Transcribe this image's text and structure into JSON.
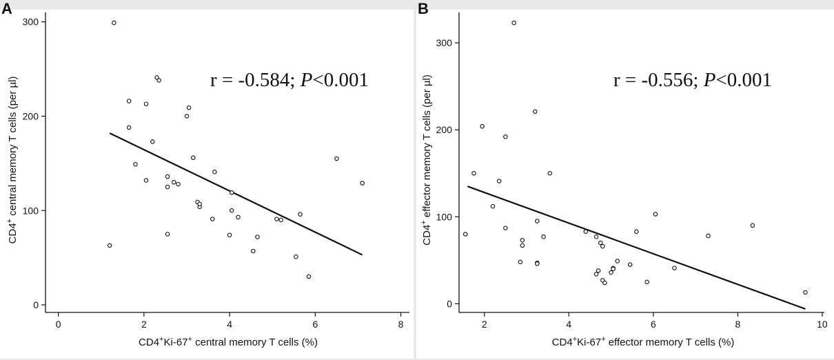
{
  "chart_data": [
    {
      "type": "scatter",
      "panel": "A",
      "xlabel": {
        "pre": "CD4",
        "sup1": "+",
        "mid": "Ki-67",
        "sup2": "+",
        "post": " central memory T cells (%)"
      },
      "ylabel": {
        "pre": "CD4",
        "sup": "+",
        "post": " central memory T cells (per µl)"
      },
      "annotation": {
        "pre": "r = -0.584; ",
        "italic": "P",
        "post": "<0.001"
      },
      "xlim": [
        -0.3,
        8.2
      ],
      "ylim": [
        -8,
        310
      ],
      "xticks": [
        0,
        2,
        4,
        6,
        8
      ],
      "yticks": [
        0,
        100,
        200,
        300
      ],
      "fit_line": {
        "x": [
          1.2,
          7.1
        ],
        "y": [
          182,
          53
        ]
      },
      "points": [
        [
          1.2,
          63
        ],
        [
          1.3,
          299
        ],
        [
          1.65,
          216
        ],
        [
          1.65,
          188
        ],
        [
          1.8,
          149
        ],
        [
          2.05,
          213
        ],
        [
          2.05,
          132
        ],
        [
          2.2,
          173
        ],
        [
          2.3,
          241
        ],
        [
          2.35,
          238
        ],
        [
          2.55,
          136
        ],
        [
          2.55,
          125
        ],
        [
          2.55,
          75
        ],
        [
          2.7,
          130
        ],
        [
          2.8,
          128
        ],
        [
          3.0,
          200
        ],
        [
          3.05,
          209
        ],
        [
          3.15,
          156
        ],
        [
          3.25,
          109
        ],
        [
          3.3,
          104
        ],
        [
          3.3,
          107
        ],
        [
          3.6,
          91
        ],
        [
          3.65,
          141
        ],
        [
          4.0,
          74
        ],
        [
          4.05,
          119
        ],
        [
          4.05,
          100
        ],
        [
          4.2,
          93
        ],
        [
          4.55,
          57
        ],
        [
          4.65,
          72
        ],
        [
          5.1,
          91
        ],
        [
          5.2,
          90
        ],
        [
          5.55,
          51
        ],
        [
          5.65,
          96
        ],
        [
          5.85,
          30
        ],
        [
          6.5,
          155
        ],
        [
          7.1,
          129
        ]
      ]
    },
    {
      "type": "scatter",
      "panel": "B",
      "xlabel": {
        "pre": "CD4",
        "sup1": "+",
        "mid": "Ki-67",
        "sup2": "+",
        "post": " effector memory T cells (%)"
      },
      "ylabel": {
        "pre": "CD4",
        "sup": "+",
        "post": " effector memory T cells (per µl)"
      },
      "annotation": {
        "pre": "r = -0.556; ",
        "italic": "P",
        "post": "<0.001"
      },
      "xlim": [
        1.4,
        10.05
      ],
      "ylim": [
        -10,
        335
      ],
      "xticks": [
        2,
        4,
        6,
        8,
        10
      ],
      "yticks": [
        0,
        100,
        200,
        300
      ],
      "fit_line": {
        "x": [
          1.6,
          9.6
        ],
        "y": [
          135,
          -6
        ]
      },
      "points": [
        [
          1.55,
          80
        ],
        [
          1.75,
          150
        ],
        [
          1.95,
          204
        ],
        [
          2.2,
          112
        ],
        [
          2.35,
          141
        ],
        [
          2.5,
          192
        ],
        [
          2.5,
          87
        ],
        [
          2.7,
          323
        ],
        [
          2.85,
          48
        ],
        [
          2.9,
          73
        ],
        [
          2.9,
          67
        ],
        [
          3.2,
          221
        ],
        [
          3.25,
          95
        ],
        [
          3.25,
          47
        ],
        [
          3.25,
          46
        ],
        [
          3.4,
          77
        ],
        [
          3.55,
          150
        ],
        [
          4.4,
          83
        ],
        [
          4.65,
          77
        ],
        [
          4.65,
          34
        ],
        [
          4.7,
          38
        ],
        [
          4.75,
          70
        ],
        [
          4.8,
          66
        ],
        [
          4.8,
          27
        ],
        [
          4.85,
          24
        ],
        [
          5.0,
          36
        ],
        [
          5.05,
          41
        ],
        [
          5.05,
          40
        ],
        [
          5.15,
          49
        ],
        [
          5.45,
          45
        ],
        [
          5.6,
          83
        ],
        [
          5.85,
          25
        ],
        [
          6.05,
          103
        ],
        [
          6.5,
          41
        ],
        [
          7.3,
          78
        ],
        [
          8.35,
          90
        ],
        [
          9.6,
          13
        ]
      ]
    }
  ]
}
